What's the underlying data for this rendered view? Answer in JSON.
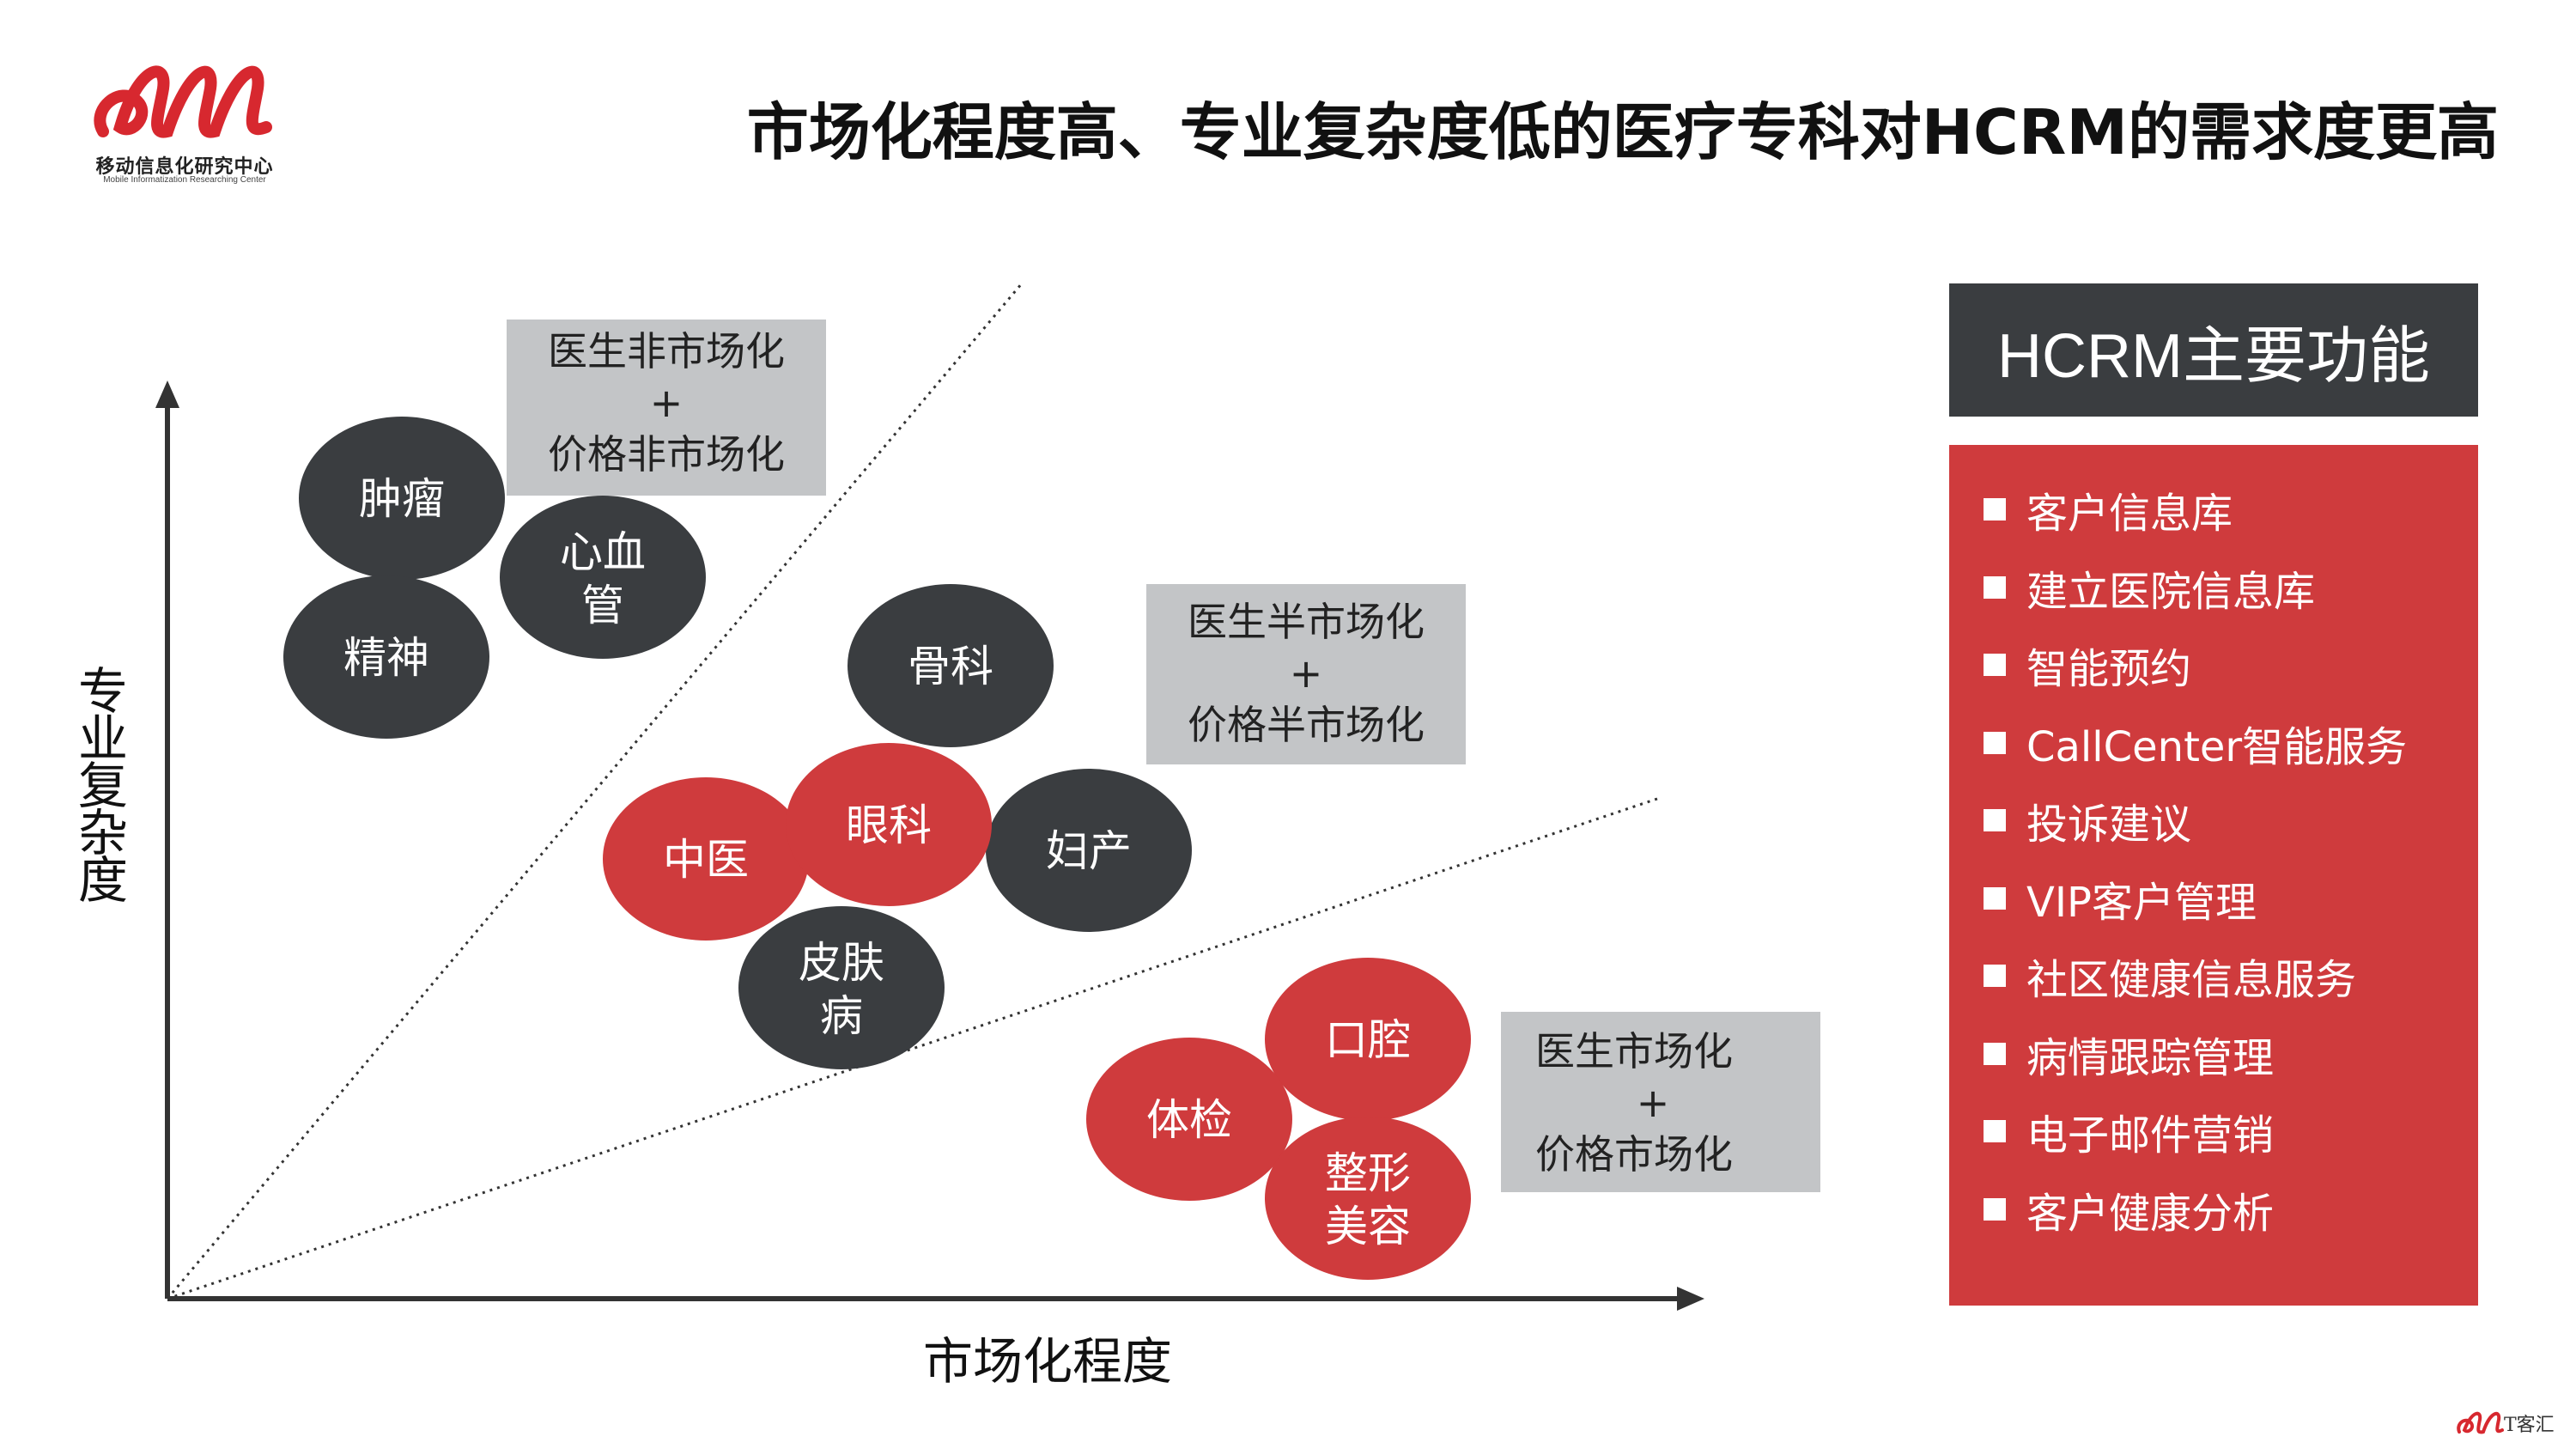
{
  "header": {
    "title": "市场化程度高、专业复杂度低的医疗专科对HCRM的需求度更高",
    "logo": {
      "name_cn": "移动信息化研究中心",
      "name_en": "Mobile Informatization Researching Center",
      "brand_color": "#d7282f"
    }
  },
  "diagram": {
    "x_axis_label": "市场化程度",
    "y_axis_label": [
      "专",
      "业",
      "复",
      "杂",
      "度"
    ],
    "zones": [
      {
        "line1": "医生非市场化",
        "plus": "+",
        "line2": "价格非市场化"
      },
      {
        "line1": "医生半市场化",
        "plus": "+",
        "line2": "价格半市场化"
      },
      {
        "line1": "医生市场化",
        "plus": "+",
        "line2": "价格市场化"
      }
    ],
    "bubbles": [
      {
        "lines": [
          "肿瘤"
        ],
        "color": "#3a3d40"
      },
      {
        "lines": [
          "精神"
        ],
        "color": "#3a3d40"
      },
      {
        "lines": [
          "心血",
          "管"
        ],
        "color": "#3a3d40"
      },
      {
        "lines": [
          "骨科"
        ],
        "color": "#3a3d40"
      },
      {
        "lines": [
          "妇产"
        ],
        "color": "#3a3d40"
      },
      {
        "lines": [
          "皮肤",
          "病"
        ],
        "color": "#3a3d40"
      },
      {
        "lines": [
          "中医"
        ],
        "color": "#cf3b3d"
      },
      {
        "lines": [
          "眼科"
        ],
        "color": "#cf3b3d"
      },
      {
        "lines": [
          "口腔"
        ],
        "color": "#cf3b3d"
      },
      {
        "lines": [
          "体检"
        ],
        "color": "#cf3b3d"
      },
      {
        "lines": [
          "整形",
          "美容"
        ],
        "color": "#cf3b3d"
      }
    ],
    "colors": {
      "dark": "#3a3d40",
      "red": "#cf3b3d",
      "box": "#c3c5c7"
    }
  },
  "panel": {
    "title": "HCRM主要功能",
    "items": [
      "客户信息库",
      "建立医院信息库",
      "智能预约",
      "CallCenter智能服务",
      "投诉建议",
      "VIP客户管理",
      "社区健康信息服务",
      "病情跟踪管理",
      "电子邮件营销",
      "客户健康分析"
    ]
  },
  "footer": {
    "mark_text": "T客汇"
  }
}
